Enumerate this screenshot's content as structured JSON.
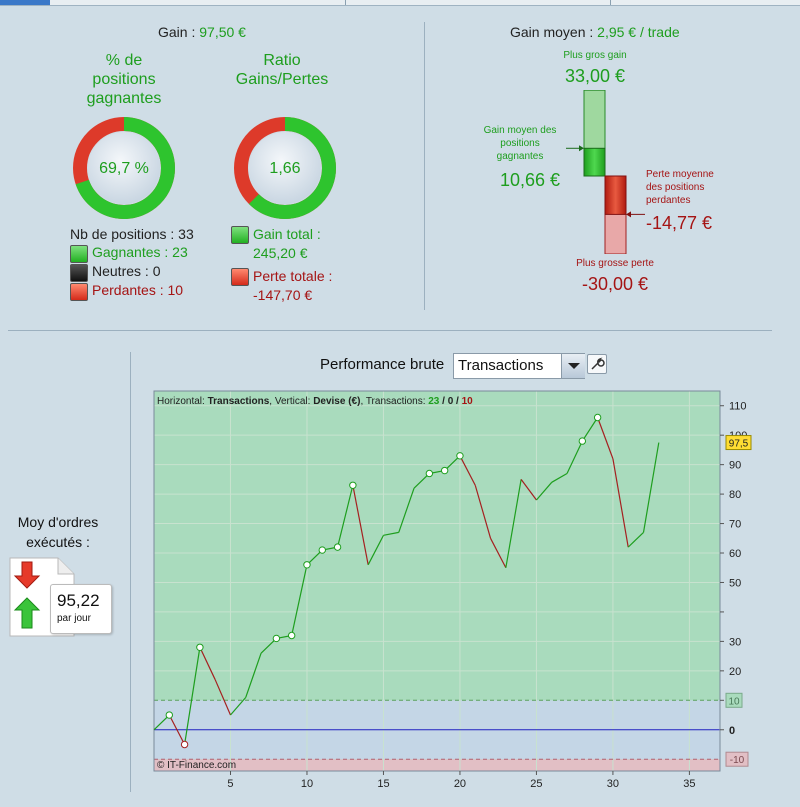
{
  "summary": {
    "gain_label": "Gain :",
    "gain_value": "97,50 €",
    "pct_title": [
      "% de",
      "positions",
      "gagnantes"
    ],
    "pct_value": "69,7 %",
    "pct_winning": 0.697,
    "ratio_title": [
      "Ratio",
      "Gains/Pertes"
    ],
    "ratio_value": "1,66",
    "ratio_share": 0.624,
    "positions_label": "Nb de positions : 33",
    "winners_label": "Gagnantes : 23",
    "neutral_label": "Neutres : 0",
    "losers_label": "Perdantes : 10",
    "gain_total_label": "Gain total :",
    "gain_total_value": "245,20 €",
    "perte_totale_label": "Perte totale :",
    "perte_totale_value": "-147,70 €"
  },
  "average": {
    "label": "Gain moyen :",
    "value": "2,95 € / trade",
    "biggest_gain_label": "Plus gros gain",
    "biggest_gain_value": "33,00 €",
    "avg_win_label": [
      "Gain moyen des",
      "positions",
      "gagnantes"
    ],
    "avg_win_value": "10,66 €",
    "avg_loss_label": [
      "Perte moyenne",
      "des positions",
      "perdantes"
    ],
    "avg_loss_value": "-14,77 €",
    "biggest_loss_label": "Plus grosse perte",
    "biggest_loss_value": "-30,00 €",
    "values": {
      "biggest_gain": 33.0,
      "avg_win": 10.66,
      "avg_loss": -14.77,
      "biggest_loss": -30.0
    }
  },
  "orders": {
    "title": [
      "Moy d'ordres",
      "exécutés :"
    ],
    "value": "95,22",
    "unit": "par jour"
  },
  "performance": {
    "title": "Performance brute",
    "select_value": "Transactions",
    "legend": {
      "horizontal_label": "Horizontal: ",
      "horizontal_value": "Transactions",
      "vertical_label": ", Vertical: ",
      "vertical_value": "Devise (€)",
      "transactions_label": ", Transactions: ",
      "wins": "23",
      "sep1": " / ",
      "neutral": "0",
      "sep2": " / ",
      "losses": "10"
    },
    "watermark": "© IT-Finance.com",
    "badge_current": "97,5",
    "badge_upper": "10",
    "badge_lower": "-10",
    "colors": {
      "up": "#1e9e1e",
      "down": "#a52020",
      "zero": "#2020c0"
    }
  },
  "chart_data": {
    "type": "line",
    "x": [
      0,
      1,
      2,
      3,
      4,
      5,
      6,
      7,
      8,
      9,
      10,
      11,
      12,
      13,
      14,
      15,
      16,
      17,
      18,
      19,
      20,
      21,
      22,
      23,
      24,
      25,
      26,
      27,
      28,
      29,
      30,
      31,
      32,
      33
    ],
    "y": [
      0,
      5,
      -5,
      28,
      17,
      5,
      11,
      26,
      31,
      32,
      56,
      61,
      62,
      83,
      56,
      66,
      67,
      82,
      87,
      88,
      93,
      83,
      65,
      55,
      85,
      78,
      84,
      87,
      98,
      106,
      92,
      62,
      67,
      97.5
    ],
    "markers": [
      1,
      2,
      3,
      8,
      9,
      10,
      11,
      12,
      13,
      18,
      19,
      20,
      28,
      29
    ],
    "xlim": [
      0,
      37
    ],
    "ylim": [
      -14,
      115
    ],
    "x_ticks": [
      5,
      10,
      15,
      20,
      25,
      30,
      35
    ],
    "y_ticks": [
      0,
      10,
      20,
      30,
      40,
      50,
      60,
      70,
      80,
      90,
      100,
      110
    ],
    "y_tick_labels": [
      "0",
      "10",
      "20",
      "30",
      "",
      "50",
      "60",
      "70",
      "80",
      "90",
      "100",
      "110"
    ],
    "zone_upper": 10,
    "zone_lower": -10
  }
}
